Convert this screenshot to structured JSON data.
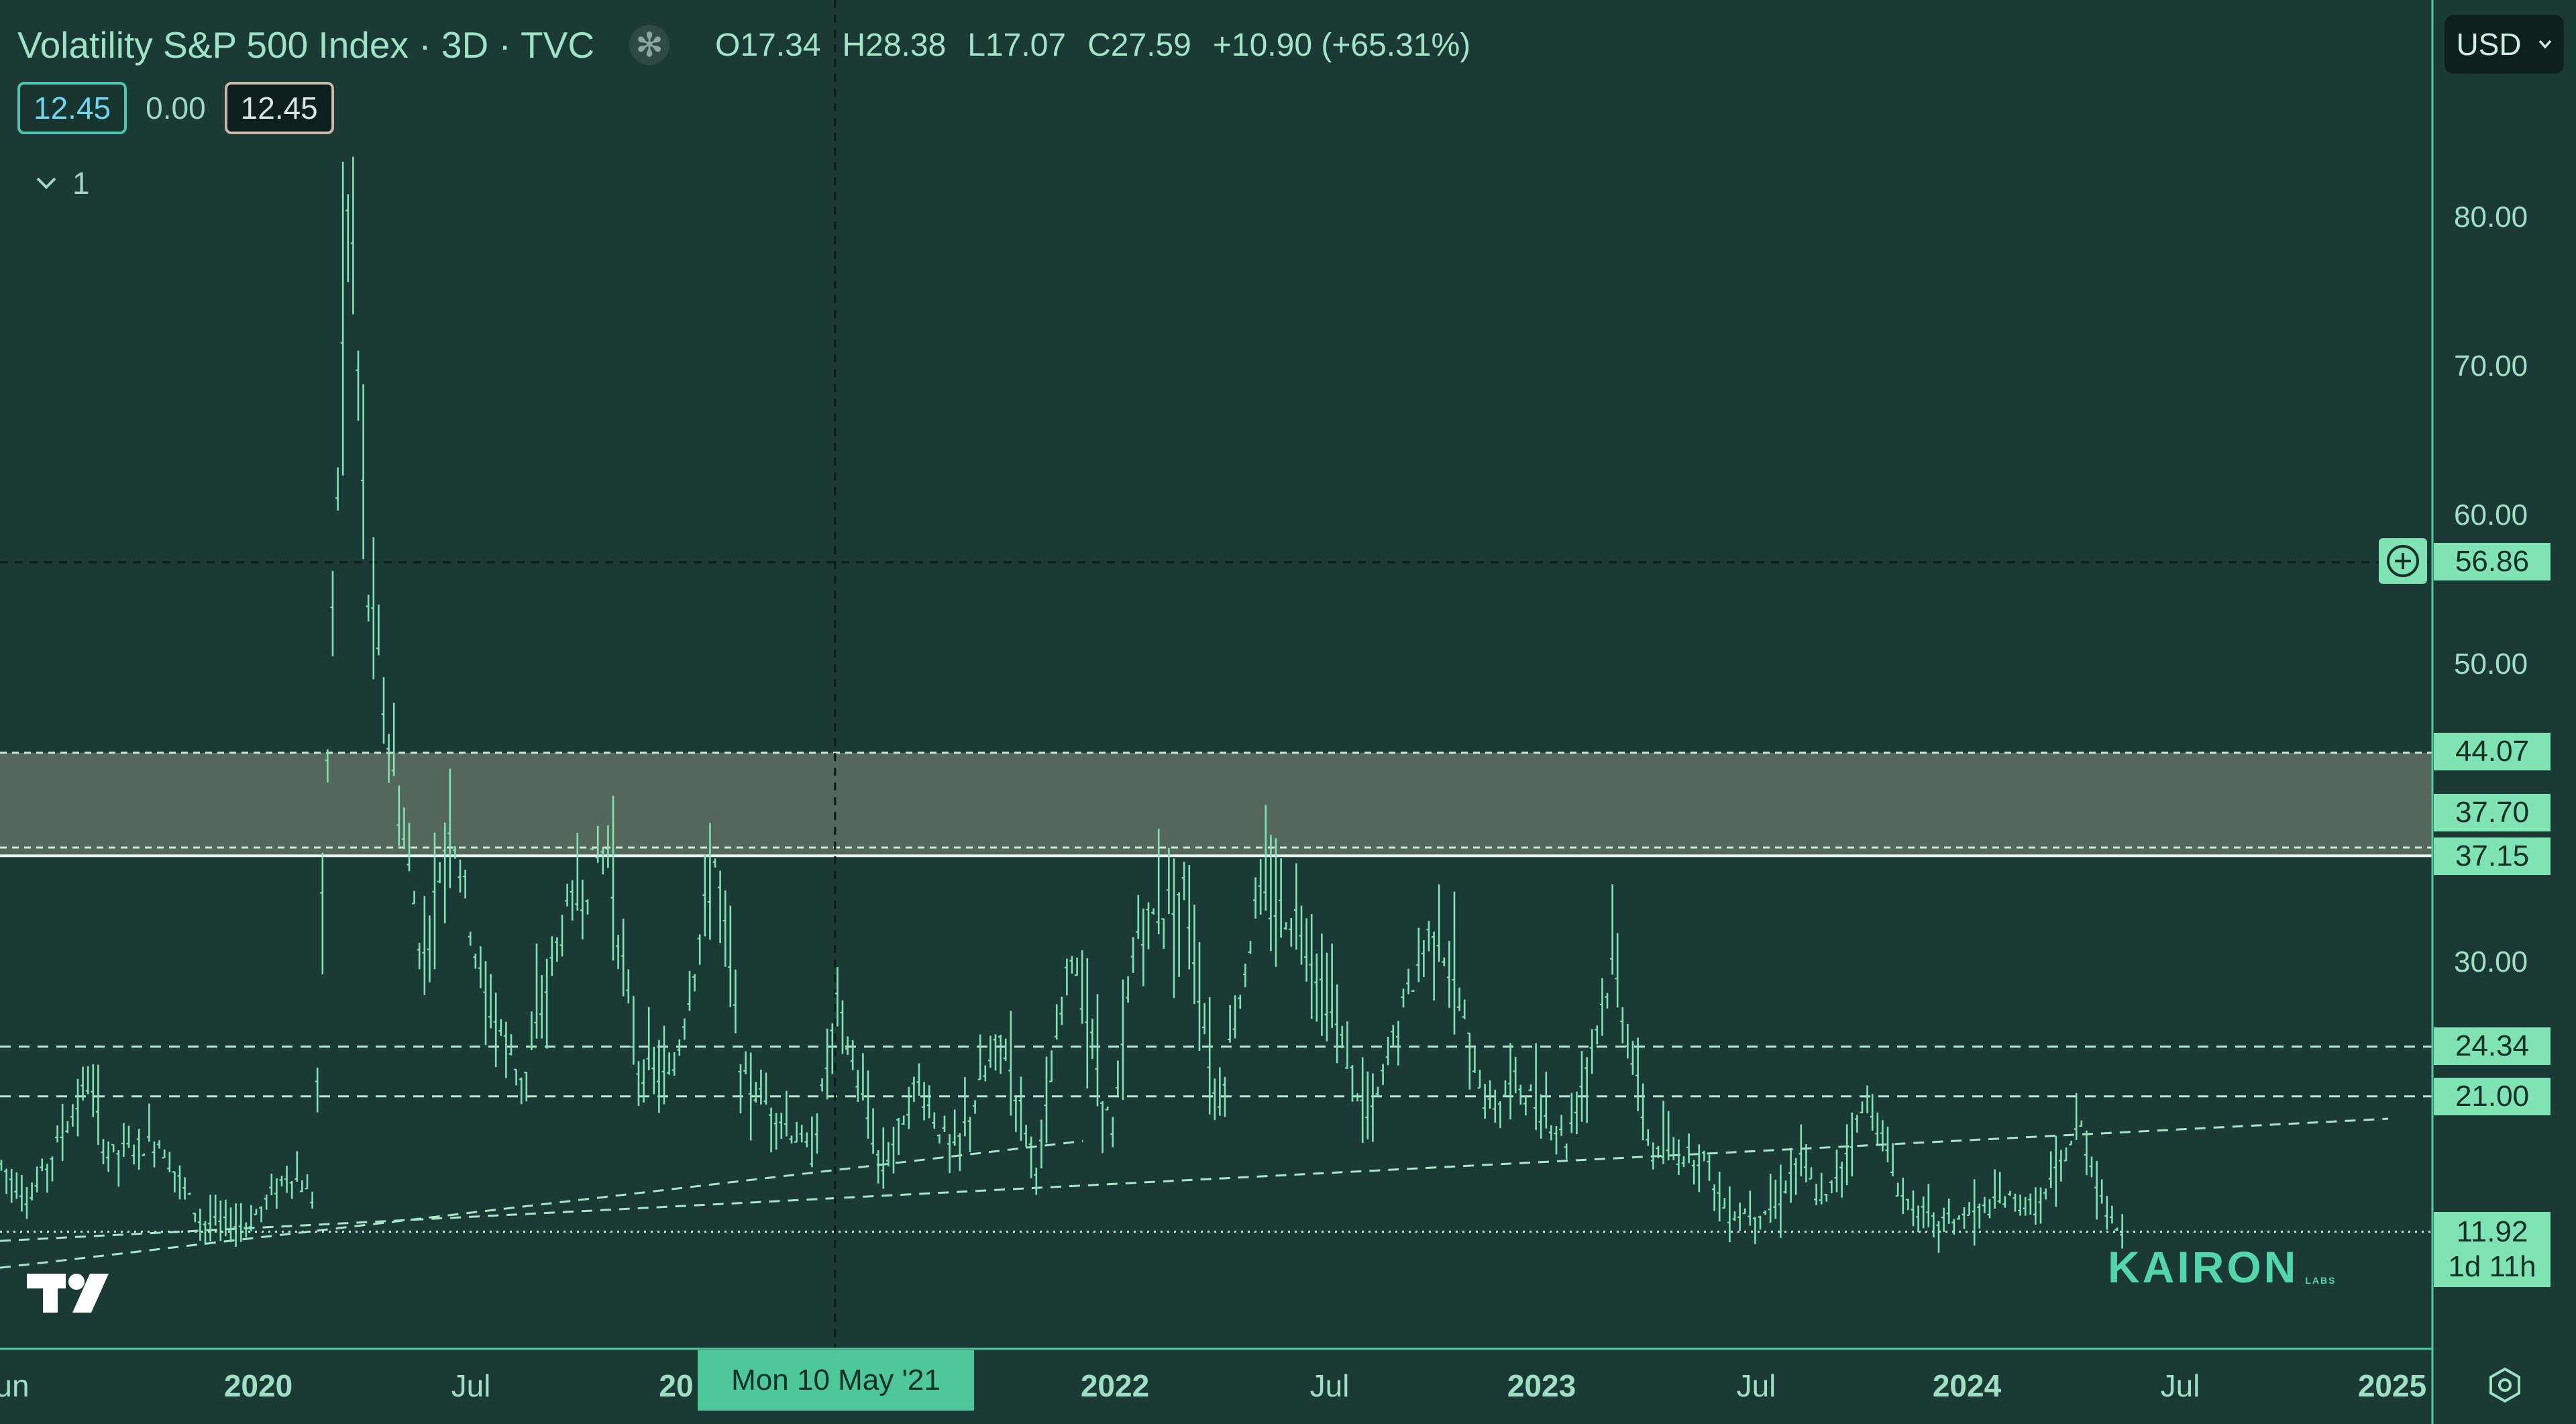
{
  "header": {
    "symbol_title": "Volatility S&P 500 Index · 3D · TVC",
    "status_icon": "asterisk-icon",
    "open": "O17.34",
    "high": "H28.38",
    "low": "L17.07",
    "close": "C27.59",
    "change": "+10.90 (+65.31%)"
  },
  "values_row": {
    "bid": "12.45",
    "spread": "0.00",
    "ask": "12.45"
  },
  "legend": {
    "count": "1",
    "chevron": "chevron-down-icon"
  },
  "currency_select": {
    "value": "USD"
  },
  "price_scale": {
    "ticks": [
      "80.00",
      "70.00",
      "60.00",
      "50.00",
      "30.00"
    ],
    "crosshair_price": "56.86",
    "level_tags": [
      "44.07",
      "37.70",
      "37.15",
      "24.34",
      "21.00"
    ],
    "last_price": "11.92",
    "countdown": "1d 11h"
  },
  "time_axis": {
    "labels": [
      "un",
      "2020",
      "Jul",
      "20",
      "2022",
      "Jul",
      "2023",
      "Jul",
      "2024",
      "Jul",
      "2025"
    ],
    "crosshair_date": "Mon 10 May '21"
  },
  "watermark": {
    "brand": "KAIRON",
    "brand_sub": "LABS"
  },
  "colors": {
    "background": "#1b3a36",
    "candles": "#7fe3b3",
    "zone": "#58695e",
    "price_tag": "#7fe3b3",
    "axis_line": "#52c99f"
  },
  "chart_data": {
    "type": "bar",
    "title": "Volatility S&P 500 Index · 3D · TVC",
    "ylim": [
      8,
      90
    ],
    "x_range": [
      "2019-05-20",
      "2025-01-10"
    ],
    "crosshair": {
      "date": "2021-05-10",
      "price": 56.86
    },
    "zone": {
      "top": 44.07,
      "bottom": 37.15,
      "mid": 37.7
    },
    "horizontal_levels": [
      24.34,
      21.0,
      11.92
    ],
    "trendlines": [
      {
        "from": [
          "2019-05-20",
          11.3
        ],
        "to": [
          "2025-01-10",
          19.5
        ]
      },
      {
        "from": [
          "2019-05-20",
          9.5
        ],
        "to": [
          "2021-12-10",
          18
        ]
      }
    ],
    "ohlc_anchors": [
      [
        "2019-05-20",
        16.5
      ],
      [
        "2019-06-15",
        14.0
      ],
      [
        "2019-08-05",
        22.0
      ],
      [
        "2019-08-20",
        17.0
      ],
      [
        "2019-10-05",
        18.0
      ],
      [
        "2019-11-10",
        12.5
      ],
      [
        "2019-12-20",
        12.3
      ],
      [
        "2020-01-25",
        16.0
      ],
      [
        "2020-02-15",
        14.0
      ],
      [
        "2020-02-25",
        40.0
      ],
      [
        "2020-03-17",
        83.0
      ],
      [
        "2020-04-01",
        55.0
      ],
      [
        "2020-04-25",
        42.0
      ],
      [
        "2020-05-20",
        30.0
      ],
      [
        "2020-06-12",
        40.0
      ],
      [
        "2020-07-10",
        28.0
      ],
      [
        "2020-08-15",
        22.0
      ],
      [
        "2020-09-15",
        32.0
      ],
      [
        "2020-10-25",
        38.0
      ],
      [
        "2020-11-20",
        23.0
      ],
      [
        "2020-12-20",
        22.0
      ],
      [
        "2021-01-27",
        37.0
      ],
      [
        "2021-02-20",
        22.0
      ],
      [
        "2021-03-20",
        20.0
      ],
      [
        "2021-04-20",
        17.0
      ],
      [
        "2021-05-12",
        27.0
      ],
      [
        "2021-06-20",
        16.0
      ],
      [
        "2021-07-20",
        22.0
      ],
      [
        "2021-08-20",
        17.0
      ],
      [
        "2021-10-01",
        25.0
      ],
      [
        "2021-11-01",
        16.0
      ],
      [
        "2021-12-01",
        31.0
      ],
      [
        "2022-01-05",
        18.0
      ],
      [
        "2022-01-25",
        32.0
      ],
      [
        "2022-03-08",
        35.0
      ],
      [
        "2022-04-05",
        20.0
      ],
      [
        "2022-05-10",
        34.0
      ],
      [
        "2022-06-15",
        33.0
      ],
      [
        "2022-08-15",
        19.0
      ],
      [
        "2022-09-05",
        25.0
      ],
      [
        "2022-10-10",
        33.0
      ],
      [
        "2022-11-25",
        20.0
      ],
      [
        "2022-12-20",
        22.0
      ],
      [
        "2023-02-01",
        18.0
      ],
      [
        "2023-03-13",
        30.0
      ],
      [
        "2023-04-15",
        17.0
      ],
      [
        "2023-05-30",
        17.0
      ],
      [
        "2023-06-20",
        13.0
      ],
      [
        "2023-08-01",
        13.5
      ],
      [
        "2023-08-20",
        17.0
      ],
      [
        "2023-09-10",
        13.5
      ],
      [
        "2023-10-20",
        21.0
      ],
      [
        "2023-11-15",
        14.5
      ],
      [
        "2023-12-15",
        12.5
      ],
      [
        "2024-01-15",
        13.0
      ],
      [
        "2024-02-15",
        14.0
      ],
      [
        "2024-03-15",
        13.5
      ],
      [
        "2024-04-19",
        19.0
      ],
      [
        "2024-05-15",
        12.5
      ],
      [
        "2024-05-28",
        11.9
      ]
    ]
  }
}
